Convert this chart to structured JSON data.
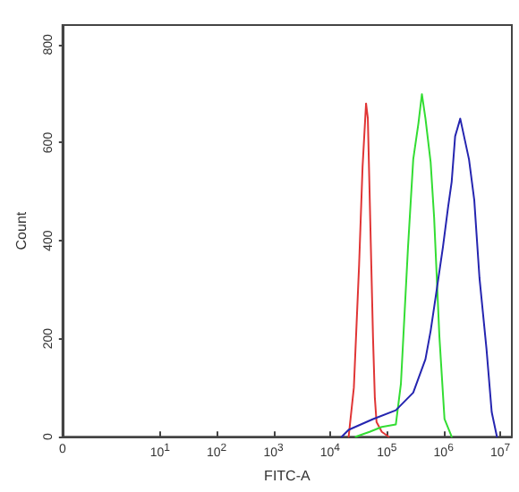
{
  "chart_data": {
    "type": "line",
    "xlabel": "FITC-A",
    "ylabel": "Count",
    "log": "x",
    "xlim": [
      0,
      16000000
    ],
    "ylim": [
      0,
      840
    ],
    "xticks": [
      {
        "value": 0,
        "label": "0"
      },
      {
        "value": 10,
        "label": "10$^{1}$"
      },
      {
        "value": 100,
        "label": "10$^{2}$"
      },
      {
        "value": 1000,
        "label": "10$^{3}$"
      },
      {
        "value": 10000,
        "label": "10$^{4}$"
      },
      {
        "value": 100000,
        "label": "10$^{5}$"
      },
      {
        "value": 1000000,
        "label": "10$^{6}$"
      },
      {
        "value": 10000000,
        "label": "10$^{7}$"
      }
    ],
    "yticks": [
      0,
      200,
      400,
      600,
      800
    ],
    "grid": false,
    "marker": "none",
    "line_style": "solid",
    "series": [
      {
        "color": "#e03535",
        "x": [
          21200,
          26200,
          32400,
          37300,
          43000,
          46200,
          49600,
          53200,
          57100,
          61400,
          65800,
          81500,
          108000
        ],
        "values": [
          0,
          100,
          350,
          550,
          680,
          650,
          500,
          350,
          200,
          80,
          30,
          10,
          0
        ]
      },
      {
        "color": "#33dd33",
        "x": [
          28100,
          49600,
          81500,
          144000,
          177000,
          236000,
          292000,
          361000,
          415000,
          479000,
          592000,
          682000,
          844000,
          1040000,
          1390000
        ],
        "values": [
          0,
          10,
          20,
          25,
          108,
          386,
          566,
          640,
          699,
          650,
          560,
          447,
          205,
          36,
          0
        ]
      },
      {
        "color": "#2525b0",
        "x": [
          16000,
          21200,
          57100,
          144000,
          292000,
          479000,
          592000,
          732000,
          973000,
          1200000,
          1390000,
          1600000,
          1970000,
          2810000,
          3480000,
          4300000,
          5710000,
          7070000,
          8740000
        ],
        "values": [
          0,
          14,
          36,
          54,
          90,
          158,
          216,
          288,
          386,
          468,
          520,
          613,
          649,
          566,
          483,
          324,
          180,
          50,
          0
        ]
      }
    ]
  }
}
